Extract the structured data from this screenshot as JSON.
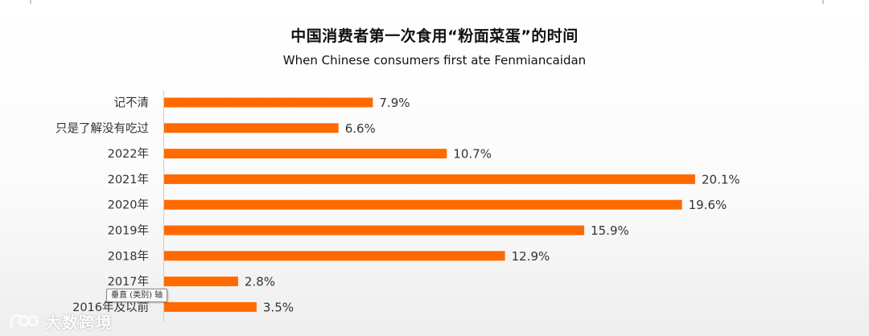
{
  "colors": {
    "bar": "#ff6a00",
    "axis": "#cccccc",
    "text": "#333333"
  },
  "tooltip_text": "垂直 (类别) 轴",
  "watermark": {
    "icon": "logo-icon",
    "text": "大数跨境"
  },
  "chart_data": {
    "type": "bar",
    "orientation": "horizontal",
    "title": "中国消费者第一次食用“粉面菜蛋”的时间",
    "subtitle": "When Chinese consumers first ate Fenmiancaidan",
    "categories": [
      "记不清",
      "只是了解没有吃过",
      "2022年",
      "2021年",
      "2020年",
      "2019年",
      "2018年",
      "2017年",
      "2016年及以前"
    ],
    "values": [
      7.9,
      6.6,
      10.7,
      20.1,
      19.6,
      15.9,
      12.9,
      2.8,
      3.5
    ],
    "value_labels": [
      "7.9%",
      "6.6%",
      "10.7%",
      "20.1%",
      "19.6%",
      "15.9%",
      "12.9%",
      "2.8%",
      "3.5%"
    ],
    "unit": "%",
    "xlim": [
      0,
      20.1
    ],
    "grid": false,
    "legend": "none"
  }
}
